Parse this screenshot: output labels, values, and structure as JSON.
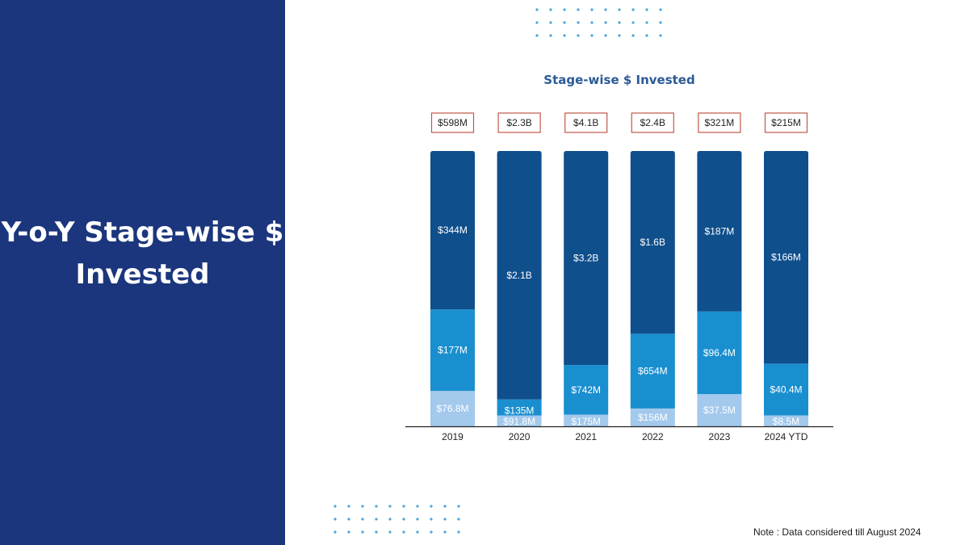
{
  "slide": {
    "title": "Y-o-Y Stage-wise $ Invested",
    "note": "Note : Data considered till August 2024"
  },
  "colors": {
    "panel": "#1b367c",
    "dots": "#4aa3df",
    "box_border": "#c0584a"
  },
  "chart_data": {
    "type": "bar",
    "stacked": true,
    "title": "Stage-wise $ Invested",
    "categories": [
      "2019",
      "2020",
      "2021",
      "2022",
      "2023",
      "2024 YTD"
    ],
    "totals": [
      "$598M",
      "$2.3B",
      "$4.1B",
      "$2.4B",
      "$321M",
      "$215M"
    ],
    "series": [
      {
        "color": "#a3c9ec",
        "values": [
          76.8,
          91.8,
          175,
          156,
          37.5,
          8.5
        ],
        "labels": [
          "$76.8M",
          "$91.8M",
          "$175M",
          "$156M",
          "$37.5M",
          "$8.5M"
        ]
      },
      {
        "color": "#1a8fd0",
        "values": [
          177,
          135,
          742,
          654,
          96.4,
          40.4
        ],
        "labels": [
          "$177M",
          "$135M",
          "$742M",
          "$654M",
          "$96.4M",
          "$40.4M"
        ]
      },
      {
        "color": "#0f4f8c",
        "values": [
          344,
          2100,
          3200,
          1600,
          187,
          166
        ],
        "labels": [
          "$344M",
          "$2.1B",
          "$3.2B",
          "$1.6B",
          "$187M",
          "$166M"
        ]
      }
    ],
    "grid": false,
    "legend": "none",
    "normalized": true
  }
}
